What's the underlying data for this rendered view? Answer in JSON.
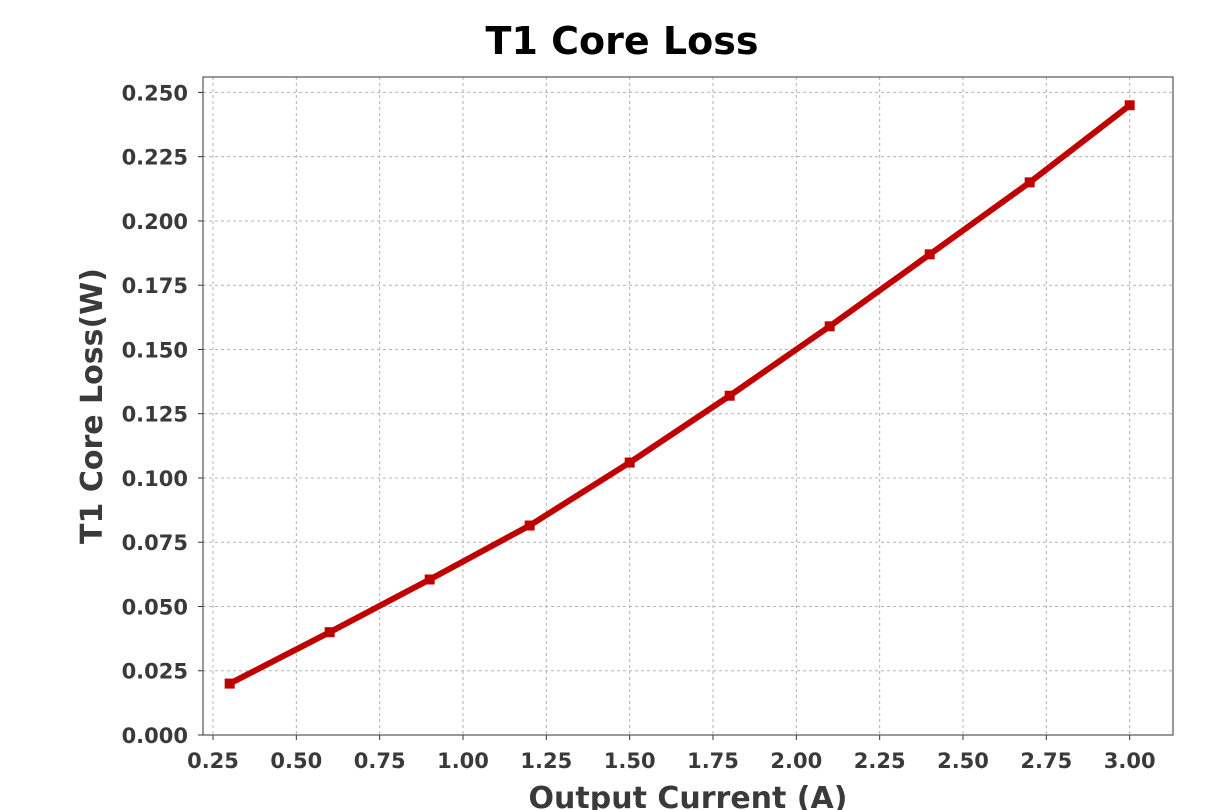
{
  "chart_data": {
    "type": "line",
    "title": "T1 Core Loss",
    "xlabel": "Output Current (A)",
    "ylabel": "T1 Core Loss(W)",
    "xlim": [
      0.22,
      3.13
    ],
    "ylim": [
      0.0,
      0.256
    ],
    "x_ticks": [
      "0.25",
      "0.50",
      "0.75",
      "1.00",
      "1.25",
      "1.50",
      "1.75",
      "2.00",
      "2.25",
      "2.50",
      "2.75",
      "3.00"
    ],
    "y_ticks": [
      "0.000",
      "0.025",
      "0.050",
      "0.075",
      "0.100",
      "0.125",
      "0.150",
      "0.175",
      "0.200",
      "0.225",
      "0.250"
    ],
    "grid": true,
    "series": [
      {
        "color": "#c00000",
        "marker": "square",
        "x": [
          0.3,
          0.6,
          0.9,
          1.2,
          1.5,
          1.8,
          2.1,
          2.4,
          2.7,
          3.0
        ],
        "y": [
          0.02,
          0.04,
          0.0605,
          0.0815,
          0.106,
          0.132,
          0.159,
          0.187,
          0.215,
          0.245
        ]
      }
    ]
  }
}
